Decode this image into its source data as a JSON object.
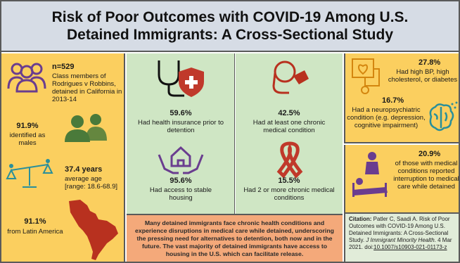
{
  "title": "Risk of Poor Outcomes with COVID-19 Among U.S.\nDetained Immigrants: A Cross-Sectional Study",
  "left": {
    "n": "n=529",
    "n_desc": "Class members of Rodrigues v Robbins, detained in California in 2013-14",
    "male_pct": "91.9%",
    "male_desc": "identified as males",
    "age_value": "37.4 years",
    "age_label": "average age",
    "age_range": "[range: 18.6-68.9]",
    "latam_pct": "91.1%",
    "latam_desc": "from Latin America"
  },
  "middle": {
    "insurance_pct": "59.6%",
    "insurance_desc": "Had health insurance prior to detention",
    "housing_pct": "95.6%",
    "housing_desc": "Had access to stable housing",
    "chronic1_pct": "42.5%",
    "chronic1_desc": "Had at least one chronic medical condition",
    "chronic2_pct": "15.5%",
    "chronic2_desc": "Had 2 or more chronic medical conditions"
  },
  "right": {
    "bp_pct": "27.8%",
    "bp_desc": "Had high BP, high cholesterol, or diabetes",
    "neuro_pct": "16.7%",
    "neuro_desc": "Had a neuropsychiatric condition (e.g. depression, cognitive impairment)",
    "interrupt_pct": "20.9%",
    "interrupt_desc": "of those with medical conditions reported interruption to medical care while detained"
  },
  "conclusion": "Many detained immigrants face chronic health conditions and experience disruptions in medical care while detained, underscoring the pressing need for alternatives to detention, both now and in the future. The vast majority of detained immigrants have access to housing in the U.S. which can facilitate release.",
  "citation": {
    "label": "Citation:",
    "text": " Patler C, Saadi A. Risk of Poor Outcomes with COVID-19 Among U.S. Detained Immigrants: A Cross-Sectional Study. ",
    "journal": "J Immigrant Minority Health",
    "date": ". 4 Mar 2021. doi:",
    "doi": "10.1007/s10903-021-01173-z"
  },
  "icons": [
    "people-group-icon",
    "male-figures-icon",
    "scale-age-icon",
    "latin-america-map-icon",
    "stethoscope-shield-icon",
    "hands-house-icon",
    "inhaler-icon",
    "awareness-ribbon-icon",
    "heart-monitor-icon",
    "brain-icon",
    "patient-bed-icon"
  ],
  "colors": {
    "title_bg": "#d6dce5",
    "yellow": "#fbcf5f",
    "green": "#cfe6c4",
    "orange": "#f4a97a",
    "cite_bg": "#e1ecd9",
    "purple": "#6a3d8f",
    "red": "#c0392b",
    "teal": "#2a8f9a",
    "icon_green": "#4a7a3a"
  }
}
